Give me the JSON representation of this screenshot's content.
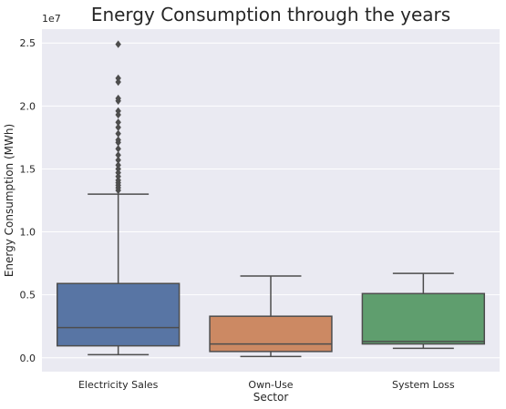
{
  "chart_data": {
    "type": "box",
    "title": "Energy Consumption through the years",
    "xlabel": "Sector",
    "ylabel": "Energy Consumption (MWh)",
    "y_offset_label": "1e7",
    "y_scale_factor": 10000000,
    "ylim": [
      -1100000,
      26100000
    ],
    "yticks": [
      0,
      5000000,
      10000000,
      15000000,
      20000000,
      25000000
    ],
    "ytick_labels": [
      "0.0",
      "0.5",
      "1.0",
      "1.5",
      "2.0",
      "2.5"
    ],
    "grid": true,
    "background": "#eaeaf2",
    "categories": [
      "Electricity Sales",
      "Own-Use",
      "System Loss"
    ],
    "colors": [
      "#5875a4",
      "#cc8963",
      "#5f9e6e"
    ],
    "boxes": [
      {
        "name": "Electricity Sales",
        "whisker_low": 250000,
        "q1": 950000,
        "median": 2400000,
        "q3": 5900000,
        "whisker_high": 13000000,
        "outliers": [
          13300000,
          13500000,
          13700000,
          13900000,
          14100000,
          14400000,
          14700000,
          15000000,
          15300000,
          15700000,
          16100000,
          16600000,
          17100000,
          17300000,
          17800000,
          18300000,
          18700000,
          19300000,
          19600000,
          20400000,
          20600000,
          21900000,
          22200000,
          24900000
        ]
      },
      {
        "name": "Own-Use",
        "whisker_low": 100000,
        "q1": 500000,
        "median": 1100000,
        "q3": 3300000,
        "whisker_high": 6500000,
        "outliers": []
      },
      {
        "name": "System Loss",
        "whisker_low": 750000,
        "q1": 1100000,
        "median": 1300000,
        "q3": 5100000,
        "whisker_high": 6700000,
        "outliers": []
      }
    ]
  }
}
